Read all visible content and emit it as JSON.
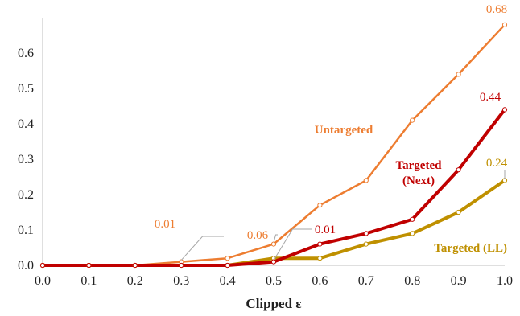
{
  "chart_data": {
    "type": "line",
    "title": "",
    "xlabel": "Clipped ε",
    "ylabel": "",
    "xlim": [
      0.0,
      1.0
    ],
    "ylim": [
      0.0,
      0.7
    ],
    "x_ticks": [
      "0.0",
      "0.1",
      "0.2",
      "0.3",
      "0.4",
      "0.5",
      "0.6",
      "0.7",
      "0.8",
      "0.9",
      "1.0"
    ],
    "y_ticks": [
      "0.0",
      "0.1",
      "0.2",
      "0.3",
      "0.4",
      "0.5",
      "0.6"
    ],
    "grid": false,
    "legend": "inline labels",
    "x": [
      0.0,
      0.1,
      0.2,
      0.3,
      0.4,
      0.5,
      0.6,
      0.7,
      0.8,
      0.9,
      1.0
    ],
    "series": [
      {
        "name": "Untargeted",
        "label_lines": [
          "Untargeted"
        ],
        "color": "#ED7D31",
        "values": [
          0.0,
          0.0,
          0.0,
          0.01,
          0.02,
          0.06,
          0.17,
          0.24,
          0.41,
          0.54,
          0.68
        ]
      },
      {
        "name": "Targeted (Next)",
        "label_lines": [
          "Targeted",
          "(Next)"
        ],
        "color": "#C00000",
        "values": [
          0.0,
          0.0,
          0.0,
          0.0,
          0.0,
          0.01,
          0.06,
          0.09,
          0.13,
          0.27,
          0.44
        ]
      },
      {
        "name": "Targeted (LL)",
        "label_lines": [
          "Targeted (LL)"
        ],
        "color": "#BF9000",
        "values": [
          0.0,
          0.0,
          0.0,
          0.0,
          0.0,
          0.02,
          0.02,
          0.06,
          0.09,
          0.15,
          0.24
        ]
      }
    ],
    "annotations": [
      {
        "text": "0.68",
        "series": 0,
        "x": 1.0
      },
      {
        "text": "0.44",
        "series": 1,
        "x": 1.0
      },
      {
        "text": "0.24",
        "series": 2,
        "x": 1.0
      },
      {
        "text": "0.01",
        "series": 0,
        "x": 0.3
      },
      {
        "text": "0.06",
        "series": 0,
        "x": 0.5
      },
      {
        "text": "0.01",
        "series": 1,
        "x": 0.5
      }
    ]
  }
}
